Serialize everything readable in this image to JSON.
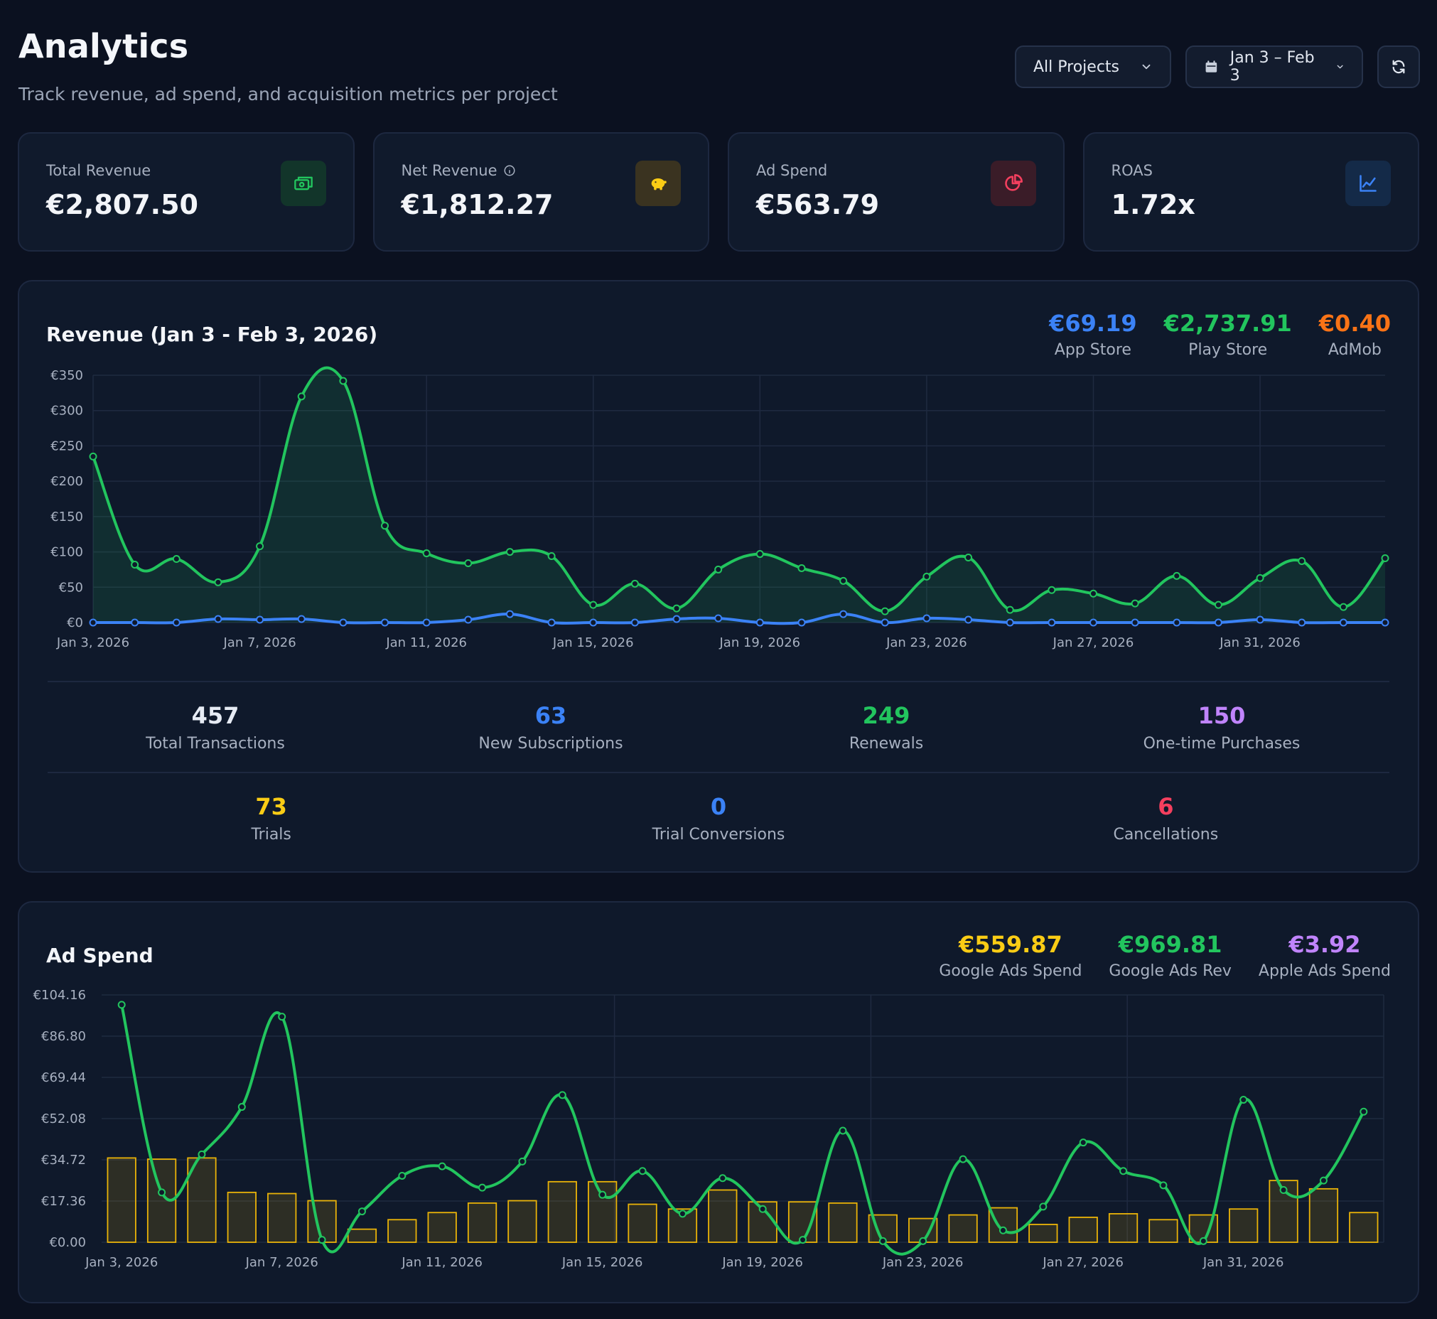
{
  "header": {
    "title": "Analytics",
    "subtitle": "Track revenue, ad spend, and acquisition metrics per project"
  },
  "controls": {
    "project_select": "All Projects",
    "date_range": "Jan 3 – Feb 3",
    "icons": [
      "chevron-down-icon",
      "calendar-icon",
      "refresh-icon"
    ]
  },
  "stat_cards": [
    {
      "label": "Total Revenue",
      "value": "€2,807.50",
      "icon": "money-icon",
      "accent": "#22c55e"
    },
    {
      "label": "Net Revenue",
      "value": "€1,812.27",
      "icon": "piggy-bank-icon",
      "accent": "#facc15",
      "info": true
    },
    {
      "label": "Ad Spend",
      "value": "€563.79",
      "icon": "pie-chart-icon",
      "accent": "#f43f5e"
    },
    {
      "label": "ROAS",
      "value": "1.72x",
      "icon": "line-chart-icon",
      "accent": "#3b82f6"
    }
  ],
  "revenue_panel": {
    "title": "Revenue (Jan 3 - Feb 3, 2026)",
    "totals": [
      {
        "value": "€69.19",
        "label": "App Store",
        "color": "#3b82f6"
      },
      {
        "value": "€2,737.91",
        "label": "Play Store",
        "color": "#22c55e"
      },
      {
        "value": "€0.40",
        "label": "AdMob",
        "color": "#f97316"
      }
    ],
    "metrics_row1": [
      {
        "value": "457",
        "label": "Total Transactions",
        "color": "#e6ebf4"
      },
      {
        "value": "63",
        "label": "New Subscriptions",
        "color": "#3b82f6"
      },
      {
        "value": "249",
        "label": "Renewals",
        "color": "#22c55e"
      },
      {
        "value": "150",
        "label": "One-time Purchases",
        "color": "#c084fc"
      }
    ],
    "metrics_row2": [
      {
        "value": "73",
        "label": "Trials",
        "color": "#facc15"
      },
      {
        "value": "0",
        "label": "Trial Conversions",
        "color": "#3b82f6"
      },
      {
        "value": "6",
        "label": "Cancellations",
        "color": "#f43f5e"
      }
    ]
  },
  "ads_panel": {
    "title": "Ad Spend",
    "totals": [
      {
        "value": "€559.87",
        "label": "Google Ads Spend",
        "color": "#facc15"
      },
      {
        "value": "€969.81",
        "label": "Google Ads Rev",
        "color": "#22c55e"
      },
      {
        "value": "€3.92",
        "label": "Apple Ads Spend",
        "color": "#c084fc"
      }
    ]
  },
  "chart_data": [
    {
      "type": "line",
      "x_tick_labels": [
        "Jan 3, 2026",
        "Jan 7, 2026",
        "Jan 11, 2026",
        "Jan 15, 2026",
        "Jan 19, 2026",
        "Jan 23, 2026",
        "Jan 27, 2026",
        "Jan 31, 2026"
      ],
      "y_tick_labels": [
        "€0",
        "€50",
        "€100",
        "€150",
        "€200",
        "€250",
        "€300",
        "€350"
      ],
      "ylim": [
        0,
        350
      ],
      "grid": true,
      "series": [
        {
          "color": "#22c55e",
          "fill": true,
          "values": [
            235,
            82,
            90,
            57,
            108,
            320,
            342,
            137,
            98,
            84,
            100,
            94,
            25,
            55,
            20,
            75,
            97,
            77,
            59,
            16,
            65,
            92,
            18,
            46,
            41,
            27,
            66,
            25,
            63,
            87,
            22,
            91
          ]
        },
        {
          "color": "#3b82f6",
          "fill": false,
          "values": [
            0,
            0,
            0,
            5,
            4,
            5,
            0,
            0,
            0,
            4,
            12,
            0,
            0,
            0,
            5,
            6,
            0,
            0,
            12,
            0,
            6,
            4,
            0,
            0,
            0,
            0,
            0,
            0,
            4,
            0,
            0,
            0
          ]
        }
      ]
    },
    {
      "type": "bar",
      "x_tick_labels": [
        "Jan 3, 2026",
        "Jan 7, 2026",
        "Jan 11, 2026",
        "Jan 15, 2026",
        "Jan 19, 2026",
        "Jan 23, 2026",
        "Jan 27, 2026",
        "Jan 31, 2026"
      ],
      "y_tick_labels": [
        "€0.00",
        "€17.36",
        "€34.72",
        "€52.08",
        "€69.44",
        "€86.80",
        "€104.16"
      ],
      "ylim": [
        0,
        104.16
      ],
      "grid": true,
      "bars": {
        "color": "#eab308",
        "values": [
          35.5,
          35,
          35.5,
          21,
          20.5,
          17.5,
          5.5,
          9.5,
          12.5,
          16.5,
          17.5,
          25.5,
          25.5,
          16,
          14,
          22,
          17,
          17,
          16.5,
          11.5,
          10,
          11.5,
          14.5,
          7.5,
          10.5,
          12,
          9.5,
          11.5,
          14,
          26,
          22.5,
          12.5
        ]
      },
      "series": [
        {
          "color": "#22c55e",
          "values": [
            100,
            21,
            37,
            57,
            95,
            1,
            13,
            28,
            32,
            23,
            34,
            62,
            20,
            30,
            12,
            27,
            14,
            1,
            47,
            0.5,
            0.5,
            35,
            5,
            15,
            42,
            30,
            24,
            0.5,
            60,
            22,
            26,
            55
          ]
        }
      ]
    }
  ]
}
